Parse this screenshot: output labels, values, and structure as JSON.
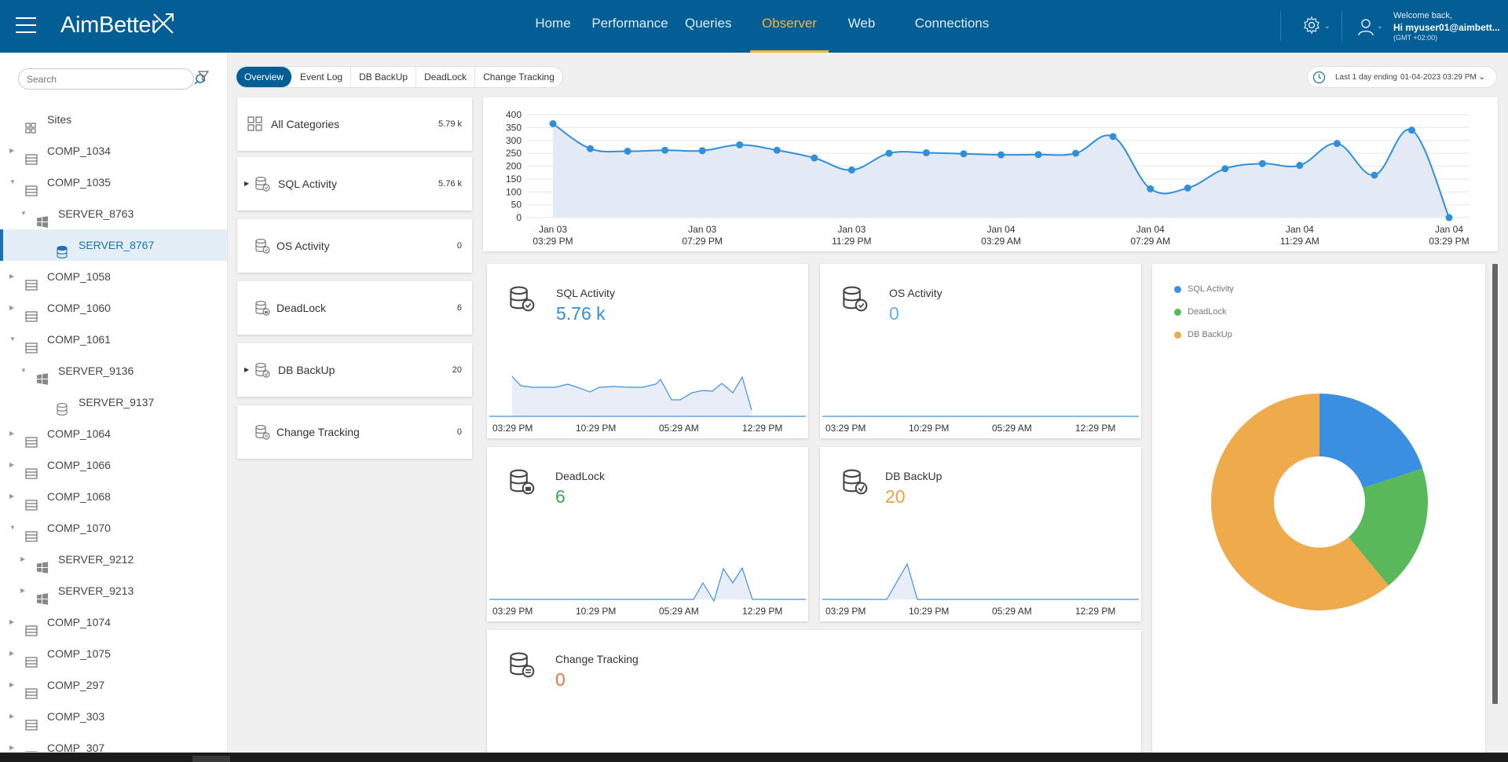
{
  "app": {
    "name": "AimBetter"
  },
  "nav": {
    "items": [
      {
        "label": "Home",
        "active": false
      },
      {
        "label": "Performance",
        "active": false
      },
      {
        "label": "Queries",
        "active": false
      },
      {
        "label": "Observer",
        "active": true
      },
      {
        "label": "Web",
        "active": false
      },
      {
        "label": "Connections",
        "active": false
      }
    ]
  },
  "user": {
    "welcome": "Welcome back,",
    "name": "Hi myuser01@aimbett...",
    "timezone": "(GMT +02:00)"
  },
  "sidebar": {
    "search_placeholder": "Search",
    "tree": [
      {
        "label": "Sites",
        "type": "sites",
        "level": 0,
        "expander": "none"
      },
      {
        "label": "COMP_1034",
        "type": "computer",
        "level": 0,
        "expander": "collapsed"
      },
      {
        "label": "COMP_1035",
        "type": "computer",
        "level": 0,
        "expander": "expanded"
      },
      {
        "label": "SERVER_8763",
        "type": "windows",
        "level": 1,
        "expander": "expanded"
      },
      {
        "label": "SERVER_8767",
        "type": "database",
        "level": 2,
        "expander": "none",
        "selected": true
      },
      {
        "label": "COMP_1058",
        "type": "computer",
        "level": 0,
        "expander": "collapsed"
      },
      {
        "label": "COMP_1060",
        "type": "computer",
        "level": 0,
        "expander": "collapsed"
      },
      {
        "label": "COMP_1061",
        "type": "computer",
        "level": 0,
        "expander": "expanded"
      },
      {
        "label": "SERVER_9136",
        "type": "windows",
        "level": 1,
        "expander": "expanded"
      },
      {
        "label": "SERVER_9137",
        "type": "database",
        "level": 2,
        "expander": "none"
      },
      {
        "label": "COMP_1064",
        "type": "computer",
        "level": 0,
        "expander": "collapsed"
      },
      {
        "label": "COMP_1066",
        "type": "computer",
        "level": 0,
        "expander": "collapsed"
      },
      {
        "label": "COMP_1068",
        "type": "computer",
        "level": 0,
        "expander": "collapsed"
      },
      {
        "label": "COMP_1070",
        "type": "computer",
        "level": 0,
        "expander": "expanded"
      },
      {
        "label": "SERVER_9212",
        "type": "windows",
        "level": 1,
        "expander": "collapsed"
      },
      {
        "label": "SERVER_9213",
        "type": "windows",
        "level": 1,
        "expander": "collapsed"
      },
      {
        "label": "COMP_1074",
        "type": "computer",
        "level": 0,
        "expander": "collapsed"
      },
      {
        "label": "COMP_1075",
        "type": "computer",
        "level": 0,
        "expander": "collapsed"
      },
      {
        "label": "COMP_297",
        "type": "computer",
        "level": 0,
        "expander": "collapsed"
      },
      {
        "label": "COMP_303",
        "type": "computer",
        "level": 0,
        "expander": "collapsed"
      },
      {
        "label": "COMP_307",
        "type": "computer",
        "level": 0,
        "expander": "collapsed"
      }
    ]
  },
  "tabs": [
    {
      "label": "Overview",
      "active": true
    },
    {
      "label": "Event Log",
      "active": false
    },
    {
      "label": "DB BackUp",
      "active": false
    },
    {
      "label": "DeadLock",
      "active": false
    },
    {
      "label": "Change Tracking",
      "active": false
    }
  ],
  "time_range": {
    "label": "Last 1 day ending",
    "value": "01-04-2023 03:29 PM"
  },
  "categories": [
    {
      "name": "All Categories",
      "count": "5.79 k",
      "icon": "grid-icon",
      "expandable": false
    },
    {
      "name": "SQL Activity",
      "count": "5.76 k",
      "icon": "sql-activity-icon",
      "expandable": true
    },
    {
      "name": "OS Activity",
      "count": "0",
      "icon": "os-activity-icon",
      "expandable": false
    },
    {
      "name": "DeadLock",
      "count": "6",
      "icon": "deadlock-icon",
      "expandable": false
    },
    {
      "name": "DB BackUp",
      "count": "20",
      "icon": "db-backup-icon",
      "expandable": true
    },
    {
      "name": "Change Tracking",
      "count": "0",
      "icon": "change-tracking-icon",
      "expandable": false
    }
  ],
  "cards": [
    {
      "title": "SQL Activity",
      "value": "5.76 k",
      "color": "#2f8fd8",
      "icon": "sql-activity-icon"
    },
    {
      "title": "OS Activity",
      "value": "0",
      "color": "#5bb5e6",
      "icon": "os-activity-icon"
    },
    {
      "title": "DeadLock",
      "value": "6",
      "color": "#3aa65a",
      "icon": "deadlock-icon"
    },
    {
      "title": "DB BackUp",
      "value": "20",
      "color": "#f0a33c",
      "icon": "db-backup-icon"
    },
    {
      "title": "Change Tracking",
      "value": "0",
      "color": "#e8753a",
      "icon": "change-tracking-icon"
    }
  ],
  "spark_ticks": [
    "03:29 PM",
    "10:29 PM",
    "05:29 AM",
    "12:29 PM"
  ],
  "colors": {
    "brand": "#045e96",
    "accent": "#f5b53a",
    "line": "#2f8fd8",
    "fill": "#e4eaf5"
  },
  "chart_data": [
    {
      "type": "area",
      "title": "",
      "xlabel": "",
      "ylabel": "",
      "ylim": [
        0,
        400
      ],
      "yticks": [
        0,
        50,
        100,
        150,
        200,
        250,
        300,
        350,
        400
      ],
      "xtick_labels": [
        [
          "Jan 03",
          "03:29 PM"
        ],
        [
          "Jan 03",
          "07:29 PM"
        ],
        [
          "Jan 03",
          "11:29 PM"
        ],
        [
          "Jan 04",
          "03:29 AM"
        ],
        [
          "Jan 04",
          "07:29 AM"
        ],
        [
          "Jan 04",
          "11:29 AM"
        ],
        [
          "Jan 04",
          "03:29 PM"
        ]
      ],
      "x_hours": [
        0,
        1,
        2,
        3,
        4,
        5,
        6,
        7,
        8,
        9,
        10,
        11,
        12,
        13,
        14,
        15,
        16,
        17,
        18,
        19,
        20,
        21,
        22,
        23,
        24
      ],
      "values": [
        365,
        268,
        258,
        262,
        260,
        283,
        262,
        232,
        185,
        250,
        252,
        248,
        244,
        245,
        250,
        315,
        112,
        115,
        190,
        210,
        203,
        288,
        165,
        340,
        0
      ],
      "grid": true
    },
    {
      "type": "pie",
      "donut": true,
      "legend_position": "top-left",
      "slices": [
        {
          "label": "SQL Activity",
          "value": 20,
          "color": "#3b8fe0"
        },
        {
          "label": "DeadLock",
          "value": 19,
          "color": "#58b85a"
        },
        {
          "label": "DB BackUp",
          "value": 61,
          "color": "#efaa4c"
        }
      ]
    }
  ]
}
